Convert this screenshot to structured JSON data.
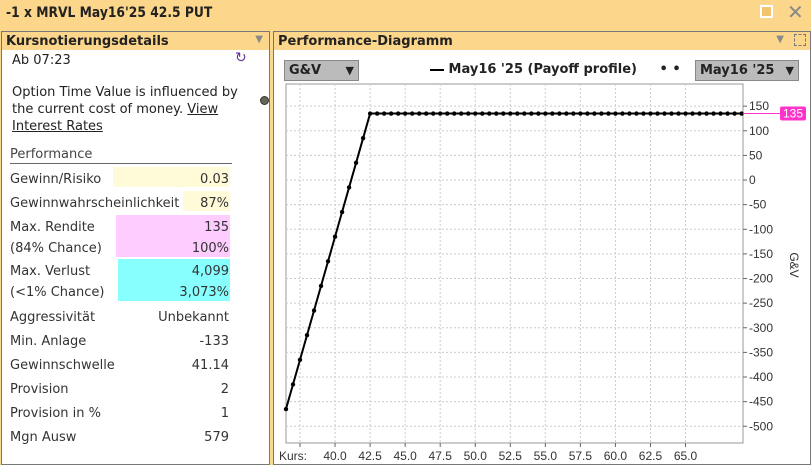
{
  "window": {
    "title": "-1 x MRVL May16'25 42.5 PUT"
  },
  "left": {
    "title": "Kursnotierungsdetails",
    "time": "Ab 07:23",
    "note": "Option Time Value is influenced by the current cost of money. ",
    "note_link": "View Interest Rates",
    "section": "Performance",
    "rows": [
      {
        "label": "Gewinn/Risiko",
        "value": "0.03"
      },
      {
        "label": "Gewinnwahrscheinlichkeit",
        "value": "87%"
      },
      {
        "label": "Max. Rendite",
        "label2": "(84% Chance)",
        "value": "135",
        "value2": "100%"
      },
      {
        "label": "Max. Verlust",
        "label2": "(<1% Chance)",
        "value": "4,099",
        "value2": "3,073%"
      },
      {
        "label": "Aggressivität",
        "value": "Unbekannt"
      },
      {
        "label": "Min. Anlage",
        "value": "-133"
      },
      {
        "label": "Gewinnschwelle",
        "value": "41.14"
      },
      {
        "label": "Provision",
        "value": "2"
      },
      {
        "label": "Provision in %",
        "value": "1"
      },
      {
        "label": "Mgn Ausw",
        "value": "579"
      }
    ]
  },
  "colors": {
    "yellow": "#fffbd9",
    "pink": "#ffccff",
    "cyan": "#88ffff",
    "marker": "#ff33cc"
  },
  "right": {
    "title": "Performance-Diagramm",
    "metric_select": "G&V",
    "legend": "May16 '25 (Payoff profile)",
    "date_select": "May16 '25"
  },
  "chart_data": {
    "type": "line",
    "xlabel": "Kurs:",
    "ylabel": "G&V",
    "xlim": [
      36.5,
      69.1
    ],
    "ylim": [
      -534,
      195
    ],
    "xticks": [
      37.5,
      40,
      42.5,
      45,
      47.5,
      50,
      52.5,
      55,
      57.5,
      60,
      62.5,
      65
    ],
    "xtick_labels": [
      "",
      "40.0",
      "42.5",
      "45.0",
      "47.5",
      "50.0",
      "52.5",
      "55.0",
      "57.5",
      "60.0",
      "62.5",
      "65.0"
    ],
    "yticks": [
      150,
      100,
      50,
      0,
      -50,
      -100,
      -150,
      -200,
      -250,
      -300,
      -350,
      -400,
      -450,
      -500
    ],
    "ytick_labels": [
      "150",
      "100",
      "50",
      "0",
      "-50",
      "-100",
      "-150",
      "-200",
      "-250",
      "-300",
      "-350",
      "-400",
      "-450",
      "-500"
    ],
    "current_value_label": "135",
    "series": [
      {
        "name": "May16 '25 (Payoff profile)",
        "x": [
          36.5,
          37,
          37.5,
          38,
          38.5,
          39,
          39.5,
          40,
          40.5,
          41,
          41.5,
          42,
          42.5,
          43,
          43.5,
          44,
          44.5,
          45,
          45.5,
          46,
          46.5,
          47,
          47.5,
          48,
          48.5,
          49,
          49.5,
          50,
          50.5,
          51,
          51.5,
          52,
          52.5,
          53,
          53.5,
          54,
          54.5,
          55,
          55.5,
          56,
          56.5,
          57,
          57.5,
          58,
          58.5,
          59,
          59.5,
          60,
          60.5,
          61,
          61.5,
          62,
          62.5,
          63,
          63.5,
          64,
          64.5,
          65,
          65.5,
          66,
          66.5,
          67,
          67.5,
          68,
          68.5,
          69
        ],
        "y": [
          -465,
          -415,
          -365,
          -315,
          -265,
          -215,
          -165,
          -115,
          -65,
          -15,
          35,
          85,
          135,
          135,
          135,
          135,
          135,
          135,
          135,
          135,
          135,
          135,
          135,
          135,
          135,
          135,
          135,
          135,
          135,
          135,
          135,
          135,
          135,
          135,
          135,
          135,
          135,
          135,
          135,
          135,
          135,
          135,
          135,
          135,
          135,
          135,
          135,
          135,
          135,
          135,
          135,
          135,
          135,
          135,
          135,
          135,
          135,
          135,
          135,
          135,
          135,
          135,
          135,
          135,
          135,
          135
        ]
      }
    ]
  }
}
